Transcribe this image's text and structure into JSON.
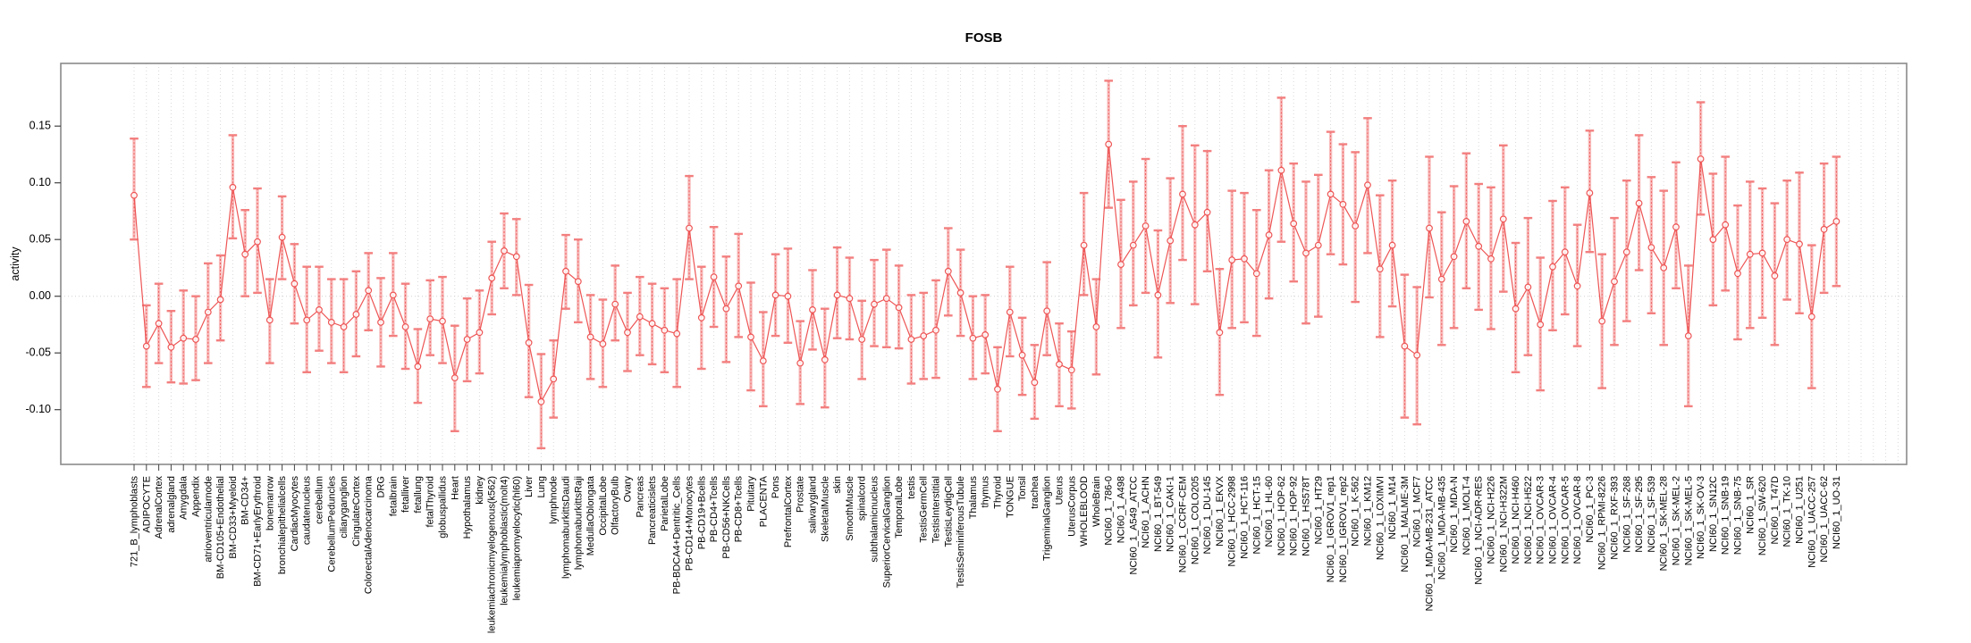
{
  "title": "FOSB",
  "ylabel": "activity",
  "colors": {
    "point": "#ee5555",
    "line": "#ee5555",
    "errorbar_fill": "rgba(243,120,120,0.5)",
    "errorbar_cap": "#f37f7f",
    "grid": "#d9d9d9",
    "box": "#8a8a8a",
    "tick": "#444444",
    "text": "#000000"
  },
  "chart_data": {
    "type": "scatter",
    "title": "FOSB",
    "xlabel": "",
    "ylabel": "activity",
    "ylim": [
      -0.148,
      0.205
    ],
    "yticks": [
      -0.1,
      -0.05,
      0.0,
      0.05,
      0.1,
      0.15
    ],
    "grid": "vertical-dotted-per-category-plus-zero-line",
    "legend": "none",
    "marker": "open-circle",
    "error_bars": true,
    "categories": [
      "721_B_lymphoblasts",
      "ADIPOCYTE",
      "AdrenalCortex",
      "adrenalgland",
      "Amygdala",
      "Appendix",
      "atrioventricularnode",
      "BM-CD105+Endothelial",
      "BM-CD33+Myeloid",
      "BM-CD34+",
      "BM-CD71+EarlyErythroid",
      "bonemarrow",
      "bronchialepithelialcells",
      "CardiacMyocytes",
      "caudatenucleus",
      "cerebellum",
      "CerebellumPeduncles",
      "ciliaryganglion",
      "CingulateCortex",
      "ColorectalAdenocarcinoma",
      "DRG",
      "fetalbrain",
      "fetalliver",
      "fetallung",
      "fetalThyroid",
      "globuspallidus",
      "Heart",
      "Hypothalamus",
      "kidney",
      "leukemiachronicmyelogenous(k562)",
      "leukemialymphoblastic(molt4)",
      "leukemiapromyelocytic(hl60)",
      "Liver",
      "Lung",
      "lymphnode",
      "lymphomaburkittsDaudi",
      "lymphomaburkittsRaji",
      "MedullaOblongata",
      "OccipitalLobe",
      "OlfactoryBulb",
      "Ovary",
      "Pancreas",
      "Pancreaticislets",
      "ParietalLobe",
      "PB-BDCA4+Dentritic_Cells",
      "PB-CD14+Monocytes",
      "PB-CD19+Bcells",
      "PB-CD4+Tcells",
      "PB-CD56+NKCells",
      "PB-CD8+Tcells",
      "Pituitary",
      "PLACENTA",
      "Pons",
      "PrefrontalCortex",
      "Prostate",
      "salivarygland",
      "SkeletalMuscle",
      "skin",
      "SmoothMuscle",
      "spinalcord",
      "subthalamicnucleus",
      "SuperiorCervicalGanglion",
      "TemporalLobe",
      "testis",
      "TestisGermCell",
      "TestisInterstitial",
      "TestisLeydigCell",
      "TestisSeminiferousTubule",
      "Thalamus",
      "thymus",
      "Thyroid",
      "TONGUE",
      "Tonsil",
      "trachea",
      "TrigeminalGanglion",
      "Uterus",
      "UterusCorpus",
      "WHOLEBLOOD",
      "WholeBrain",
      "NCI60_1_786-0",
      "NCI60_1_A498",
      "NCI60_1_A549_ATCC",
      "NCI60_1_ACHN",
      "NCI60_1_BT-549",
      "NCI60_1_CAKI-1",
      "NCI60_1_CCRF-CEM",
      "NCI60_1_COLO205",
      "NCI60_1_DU-145",
      "NCI60_1_EKVX",
      "NCI60_1_HCC-2998",
      "NCI60_1_HCT-116",
      "NCI60_1_HCT-15",
      "NCI60_1_HL-60",
      "NCI60_1_HOP-62",
      "NCI60_1_HOP-92",
      "NCI60_1_HS578T",
      "NCI60_1_HT29",
      "NCI60_1_IGROV1_rep1",
      "NCI60_1_IGROV1_rep2",
      "NCI60_1_K-562",
      "NCI60_1_KM12",
      "NCI60_1_LOXIMVI",
      "NCI60_1_M14",
      "NCI60_1_MALME-3M",
      "NCI60_1_MCF7",
      "NCI60_1_MDA-MB-231_ATCC",
      "NCI60_1_MDA-MB-435",
      "NCI60_1_MDA-N",
      "NCI60_1_MOLT-4",
      "NCI60_1_NCI-ADR-RES",
      "NCI60_1_NCI-H226",
      "NCI60_1_NCI-H322M",
      "NCI60_1_NCI-H460",
      "NCI60_1_NCI-H522",
      "NCI60_1_OVCAR-3",
      "NCI60_1_OVCAR-4",
      "NCI60_1_OVCAR-5",
      "NCI60_1_OVCAR-8",
      "NCI60_1_PC-3",
      "NCI60_1_RPMI-8226",
      "NCI60_1_RXF-393",
      "NCI60_1_SF-268",
      "NCI60_1_SF-295",
      "NCI60_1_SF-539",
      "NCI60_1_SK-MEL-28",
      "NCI60_1_SK-MEL-2",
      "NCI60_1_SK-MEL-5",
      "NCI60_1_SK-OV-3",
      "NCI60_1_SN12C",
      "NCI60_1_SNB-19",
      "NCI60_1_SNB-75",
      "NCI60_1_SR",
      "NCI60_1_SW-620",
      "NCI60_1_T47D",
      "NCI60_1_TK-10",
      "NCI60_1_U251",
      "NCI60_1_UACC-257",
      "NCI60_1_UACC-62",
      "NCI60_1_UO-31"
    ],
    "series": [
      {
        "name": "activity",
        "values": [
          0.089,
          -0.044,
          -0.024,
          -0.045,
          -0.037,
          -0.038,
          -0.014,
          -0.003,
          0.096,
          0.037,
          0.048,
          -0.021,
          0.052,
          0.011,
          -0.021,
          -0.012,
          -0.023,
          -0.027,
          -0.016,
          0.005,
          -0.023,
          0.001,
          -0.027,
          -0.062,
          -0.02,
          -0.022,
          -0.072,
          -0.038,
          -0.032,
          0.016,
          0.04,
          0.035,
          -0.041,
          -0.093,
          -0.073,
          0.022,
          0.013,
          -0.036,
          -0.042,
          -0.007,
          -0.032,
          -0.018,
          -0.024,
          -0.03,
          -0.033,
          0.06,
          -0.019,
          0.017,
          -0.011,
          0.009,
          -0.036,
          -0.057,
          0.001,
          0.0,
          -0.059,
          -0.012,
          -0.056,
          0.001,
          -0.002,
          -0.038,
          -0.007,
          -0.002,
          -0.01,
          -0.038,
          -0.035,
          -0.03,
          0.022,
          0.003,
          -0.037,
          -0.034,
          -0.082,
          -0.014,
          -0.052,
          -0.076,
          -0.013,
          -0.06,
          -0.065,
          0.045,
          -0.027,
          0.134,
          0.028,
          0.045,
          0.062,
          0.001,
          0.049,
          0.09,
          0.063,
          0.074,
          -0.032,
          0.032,
          0.033,
          0.02,
          0.054,
          0.111,
          0.064,
          0.038,
          0.045,
          0.09,
          0.081,
          0.062,
          0.098,
          0.024,
          0.045,
          -0.044,
          -0.052,
          0.06,
          0.015,
          0.035,
          0.066,
          0.044,
          0.033,
          0.068,
          -0.011,
          0.008,
          -0.025,
          0.026,
          0.039,
          0.009,
          0.091,
          -0.022,
          0.013,
          0.039,
          0.082,
          0.043,
          0.025,
          0.061,
          -0.035,
          0.121,
          0.05,
          0.063,
          0.02,
          0.037,
          0.038,
          0.018,
          0.05,
          0.046,
          -0.018,
          0.059,
          0.066
        ],
        "lower": [
          0.05,
          -0.08,
          -0.059,
          -0.076,
          -0.077,
          -0.074,
          -0.059,
          -0.039,
          0.051,
          0.0,
          0.003,
          -0.059,
          0.015,
          -0.024,
          -0.067,
          -0.048,
          -0.059,
          -0.067,
          -0.053,
          -0.03,
          -0.062,
          -0.035,
          -0.064,
          -0.094,
          -0.052,
          -0.059,
          -0.119,
          -0.075,
          -0.068,
          -0.016,
          0.007,
          0.001,
          -0.089,
          -0.134,
          -0.107,
          -0.011,
          -0.023,
          -0.073,
          -0.08,
          -0.039,
          -0.066,
          -0.052,
          -0.06,
          -0.067,
          -0.08,
          0.015,
          -0.064,
          -0.027,
          -0.058,
          -0.036,
          -0.083,
          -0.097,
          -0.035,
          -0.041,
          -0.095,
          -0.047,
          -0.098,
          -0.037,
          -0.038,
          -0.073,
          -0.044,
          -0.045,
          -0.046,
          -0.077,
          -0.073,
          -0.072,
          -0.017,
          -0.035,
          -0.073,
          -0.068,
          -0.119,
          -0.053,
          -0.087,
          -0.108,
          -0.052,
          -0.097,
          -0.099,
          0.001,
          -0.069,
          0.078,
          -0.028,
          -0.008,
          0.003,
          -0.054,
          -0.006,
          0.032,
          -0.007,
          0.022,
          -0.087,
          -0.028,
          -0.023,
          -0.035,
          -0.002,
          0.048,
          0.013,
          -0.024,
          -0.018,
          0.037,
          0.028,
          -0.005,
          0.038,
          -0.036,
          -0.009,
          -0.107,
          -0.113,
          -0.001,
          -0.043,
          -0.028,
          0.007,
          -0.012,
          -0.029,
          0.004,
          -0.067,
          -0.052,
          -0.083,
          -0.03,
          -0.016,
          -0.044,
          0.039,
          -0.081,
          -0.043,
          -0.022,
          0.023,
          -0.015,
          -0.043,
          0.007,
          -0.097,
          0.072,
          -0.008,
          0.005,
          -0.038,
          -0.028,
          -0.019,
          -0.043,
          -0.003,
          -0.015,
          -0.081,
          0.003,
          0.009
        ],
        "upper": [
          0.139,
          -0.008,
          0.011,
          -0.013,
          0.005,
          0.0,
          0.029,
          0.036,
          0.142,
          0.076,
          0.095,
          0.015,
          0.088,
          0.046,
          0.026,
          0.026,
          0.015,
          0.015,
          0.022,
          0.038,
          0.016,
          0.038,
          0.011,
          -0.029,
          0.014,
          0.017,
          -0.026,
          -0.002,
          0.005,
          0.048,
          0.073,
          0.068,
          0.01,
          -0.051,
          -0.039,
          0.054,
          0.05,
          0.001,
          -0.003,
          0.027,
          0.003,
          0.017,
          0.011,
          0.007,
          0.015,
          0.106,
          0.026,
          0.061,
          0.035,
          0.055,
          0.012,
          -0.014,
          0.037,
          0.042,
          -0.022,
          0.023,
          -0.011,
          0.043,
          0.034,
          -0.004,
          0.032,
          0.041,
          0.027,
          0.001,
          0.003,
          0.014,
          0.06,
          0.041,
          0.0,
          0.001,
          -0.045,
          0.026,
          -0.019,
          -0.043,
          0.03,
          -0.024,
          -0.031,
          0.091,
          0.015,
          0.19,
          0.085,
          0.101,
          0.121,
          0.058,
          0.104,
          0.15,
          0.133,
          0.128,
          0.024,
          0.093,
          0.091,
          0.076,
          0.111,
          0.175,
          0.117,
          0.101,
          0.107,
          0.145,
          0.134,
          0.127,
          0.157,
          0.089,
          0.102,
          0.019,
          0.008,
          0.123,
          0.074,
          0.097,
          0.126,
          0.099,
          0.096,
          0.133,
          0.047,
          0.069,
          0.034,
          0.084,
          0.096,
          0.063,
          0.146,
          0.037,
          0.069,
          0.102,
          0.142,
          0.105,
          0.093,
          0.118,
          0.027,
          0.171,
          0.108,
          0.123,
          0.08,
          0.101,
          0.095,
          0.082,
          0.102,
          0.109,
          0.045,
          0.117,
          0.123
        ]
      }
    ]
  }
}
